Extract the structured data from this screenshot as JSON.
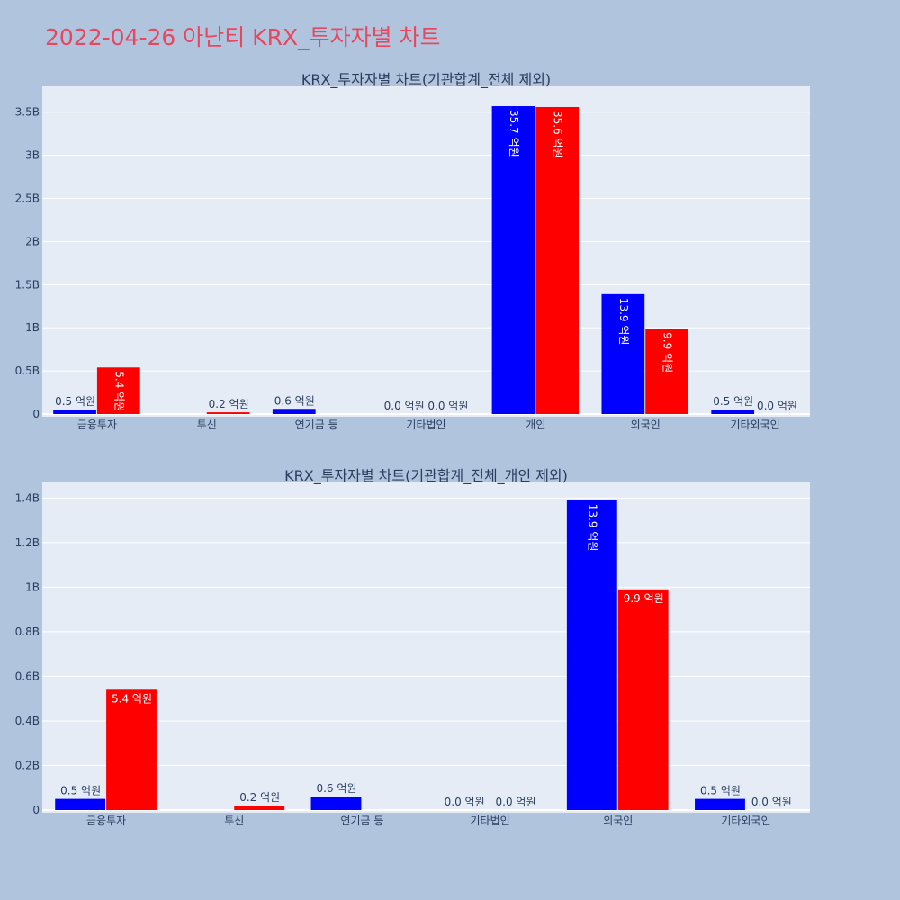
{
  "title": "2022-04-26 아난티 KRX_투자자별 차트",
  "colors": {
    "buy": "#0000ff",
    "sell": "#ff0000",
    "plot_bg": "#e5ecf6",
    "page_bg": "#b0c4de",
    "title": "#e8475e"
  },
  "chart_data": [
    {
      "type": "bar",
      "title": "KRX_투자자별 차트(기관합계_전체 제외)",
      "categories": [
        "금융투자",
        "투신",
        "연기금 등",
        "기타법인",
        "개인",
        "외국인",
        "기타외국인"
      ],
      "series": [
        {
          "values": [
            0.05,
            0,
            0.06,
            0.0,
            3.57,
            1.39,
            0.05
          ],
          "labels": [
            "0.5 억원",
            "",
            "0.6 억원",
            "0.0 억원",
            "35.7 억원",
            "13.9 억원",
            "0.5 억원"
          ]
        },
        {
          "values": [
            0.54,
            0.02,
            0,
            0.0,
            3.56,
            0.99,
            0.0
          ],
          "labels": [
            "5.4 억원",
            "0.2 억원",
            "",
            "0.0 억원",
            "35.6 억원",
            "9.9 억원",
            "0.0 억원"
          ]
        }
      ],
      "ylim": [
        0,
        3.8
      ],
      "yticks": [
        0,
        0.5,
        1,
        1.5,
        2,
        2.5,
        3,
        3.5
      ],
      "ytick_labels": [
        "0",
        "0.5B",
        "1B",
        "1.5B",
        "2B",
        "2.5B",
        "3B",
        "3.5B"
      ],
      "grid": true
    },
    {
      "type": "bar",
      "title": "KRX_투자자별 차트(기관합계_전체_개인 제외)",
      "categories": [
        "금융투자",
        "투신",
        "연기금 등",
        "기타법인",
        "외국인",
        "기타외국인"
      ],
      "series": [
        {
          "values": [
            0.05,
            0,
            0.06,
            0.0,
            1.39,
            0.05
          ],
          "labels": [
            "0.5 억원",
            "",
            "0.6 억원",
            "0.0 억원",
            "13.9 억원",
            "0.5 억원"
          ]
        },
        {
          "values": [
            0.54,
            0.02,
            0,
            0.0,
            0.99,
            0.0
          ],
          "labels": [
            "5.4 억원",
            "0.2 억원",
            "",
            "0.0 억원",
            "9.9 억원",
            "0.0 억원"
          ]
        }
      ],
      "ylim": [
        0,
        1.47
      ],
      "yticks": [
        0,
        0.2,
        0.4,
        0.6,
        0.8,
        1,
        1.2,
        1.4
      ],
      "ytick_labels": [
        "0",
        "0.2B",
        "0.4B",
        "0.6B",
        "0.8B",
        "1B",
        "1.2B",
        "1.4B"
      ],
      "grid": true
    }
  ]
}
